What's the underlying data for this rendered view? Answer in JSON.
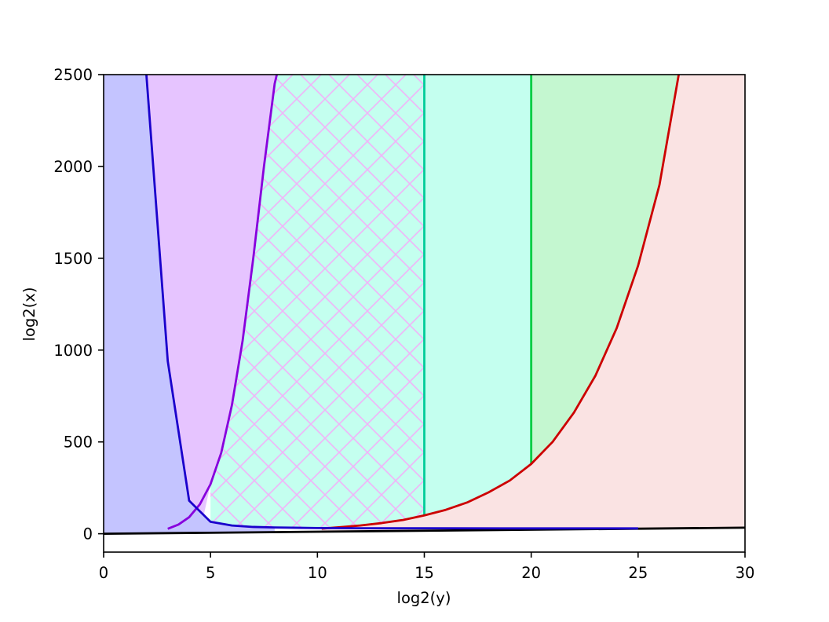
{
  "chart_data": {
    "type": "area",
    "title": "",
    "xlabel": "log2(y)",
    "ylabel": "log2(x)",
    "xlim": [
      0,
      30
    ],
    "ylim": [
      -100,
      2500
    ],
    "xticks": [
      0,
      5,
      10,
      15,
      20,
      25,
      30
    ],
    "yticks": [
      0,
      500,
      1000,
      1500,
      2000,
      2500
    ],
    "grid": false,
    "legend": "none",
    "region_colors": {
      "blue_region": "#c4c4ff",
      "purple_region": "#e6c4ff",
      "cyan_region": "#c4ffef",
      "green_region": "#c4f7d0",
      "red_region": "#fae3e3",
      "hatch": "#f0b4f8"
    },
    "series": [
      {
        "color": "#1a00cc",
        "x": [
          2,
          3,
          4,
          5,
          6,
          7,
          8,
          10,
          12,
          15,
          20,
          25
        ],
        "y": [
          2500,
          940,
          180,
          65,
          45,
          37,
          34,
          31,
          30,
          30,
          29,
          29
        ]
      },
      {
        "color": "#8800dd",
        "x": [
          3,
          3.5,
          4,
          4.5,
          5,
          5.5,
          6,
          6.5,
          7,
          7.5,
          8,
          8.1
        ],
        "y": [
          27,
          50,
          90,
          160,
          270,
          440,
          700,
          1050,
          1500,
          2000,
          2450,
          2500
        ]
      },
      {
        "color": "#cc0000",
        "x": [
          10.2,
          11,
          12,
          13,
          14,
          15,
          16,
          17,
          18,
          19,
          20,
          21,
          22,
          23,
          24,
          25,
          26,
          26.9
        ],
        "y": [
          28,
          35,
          45,
          58,
          75,
          100,
          130,
          170,
          225,
          290,
          380,
          500,
          660,
          860,
          1120,
          1460,
          1900,
          2500
        ]
      },
      {
        "color": "#000000",
        "x": [
          0,
          30
        ],
        "y": [
          0,
          33
        ]
      },
      {
        "color": "#00cc99",
        "x": [
          15,
          15
        ],
        "y": [
          100,
          2500
        ]
      },
      {
        "color": "#00cc44",
        "x": [
          20,
          20
        ],
        "y": [
          380,
          2500
        ]
      }
    ]
  }
}
